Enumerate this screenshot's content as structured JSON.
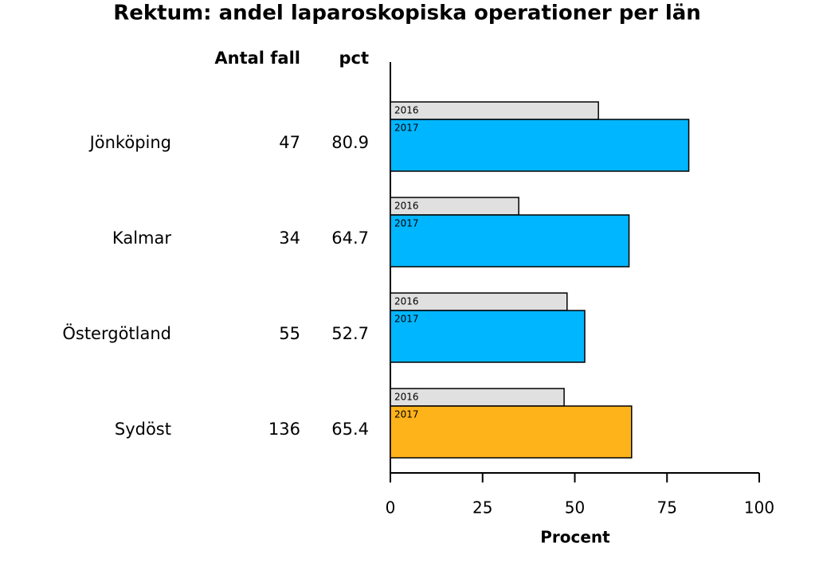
{
  "chart_data": {
    "type": "bar",
    "orientation": "horizontal",
    "title": "Rektum: andel laparoskopiska operationer per län",
    "categories": [
      "Jönköping",
      "Kalmar",
      "Östergötland",
      "Sydöst"
    ],
    "series": [
      {
        "name": "2016",
        "color": "#e0e0e0",
        "values": [
          56.4,
          34.8,
          47.9,
          47.1
        ]
      },
      {
        "name": "2017",
        "colors": [
          "#00b6ff",
          "#00b6ff",
          "#00b6ff",
          "#ffb31a"
        ],
        "values": [
          80.9,
          64.7,
          52.7,
          65.4
        ]
      }
    ],
    "table": [
      {
        "header": "Antal fall",
        "values": [
          47,
          34,
          55,
          136
        ]
      },
      {
        "header": "pct",
        "values": [
          80.9,
          64.7,
          52.7,
          65.4
        ]
      }
    ],
    "xlabel": "Procent",
    "xlim": [
      0,
      100
    ],
    "xticks": [
      0,
      25,
      50,
      75,
      100
    ]
  }
}
